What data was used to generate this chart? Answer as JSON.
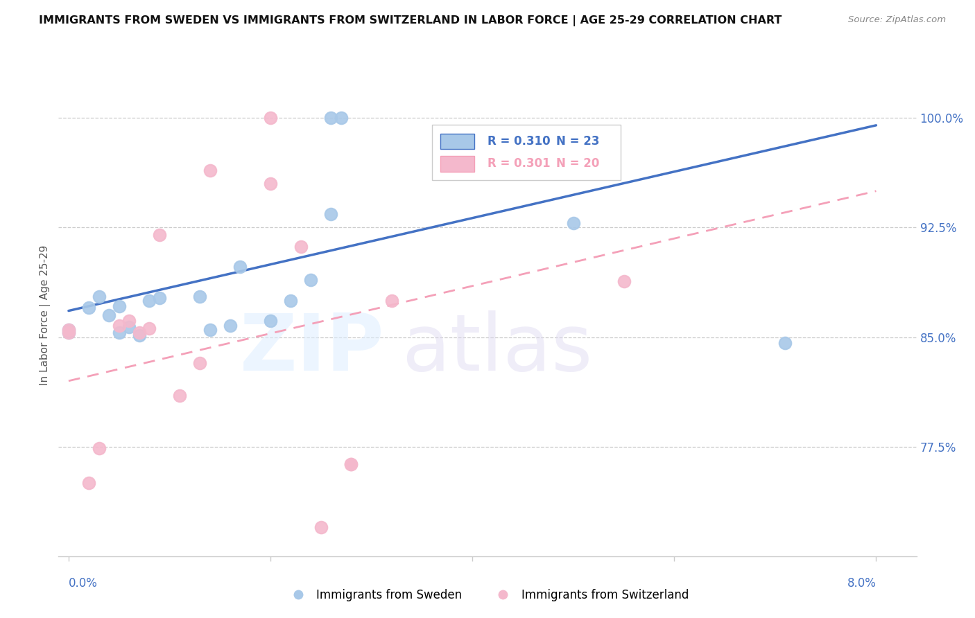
{
  "title": "IMMIGRANTS FROM SWEDEN VS IMMIGRANTS FROM SWITZERLAND IN LABOR FORCE | AGE 25-29 CORRELATION CHART",
  "source": "Source: ZipAtlas.com",
  "ylabel": "In Labor Force | Age 25-29",
  "sweden_R": 0.31,
  "sweden_N": 23,
  "swiss_R": 0.301,
  "swiss_N": 20,
  "sweden_color": "#a8c8e8",
  "swiss_color": "#f4b8cc",
  "sweden_line_color": "#4472c4",
  "swiss_line_color": "#f4a0b8",
  "ylim_min": 0.7,
  "ylim_max": 1.03,
  "xlim_min": -0.001,
  "xlim_max": 0.084,
  "yticks": [
    0.775,
    0.85,
    0.925,
    1.0
  ],
  "ytick_labels": [
    "77.5%",
    "85.0%",
    "92.5%",
    "100.0%"
  ],
  "xtick_positions": [
    0.0,
    0.02,
    0.04,
    0.06,
    0.08
  ],
  "sweden_x": [
    0.0,
    0.0,
    0.002,
    0.003,
    0.004,
    0.005,
    0.005,
    0.006,
    0.007,
    0.008,
    0.009,
    0.013,
    0.014,
    0.016,
    0.017,
    0.02,
    0.022,
    0.024,
    0.026,
    0.026,
    0.027,
    0.071,
    0.05
  ],
  "sweden_y": [
    0.855,
    0.853,
    0.87,
    0.878,
    0.865,
    0.853,
    0.871,
    0.857,
    0.851,
    0.875,
    0.877,
    0.878,
    0.855,
    0.858,
    0.898,
    0.861,
    0.875,
    0.889,
    0.934,
    1.0,
    1.0,
    0.846,
    0.928
  ],
  "swiss_x": [
    0.0,
    0.0,
    0.002,
    0.003,
    0.005,
    0.006,
    0.007,
    0.008,
    0.009,
    0.011,
    0.013,
    0.014,
    0.02,
    0.02,
    0.023,
    0.025,
    0.028,
    0.028,
    0.032,
    0.055
  ],
  "swiss_y": [
    0.853,
    0.855,
    0.75,
    0.774,
    0.858,
    0.861,
    0.853,
    0.856,
    0.92,
    0.81,
    0.832,
    0.964,
    0.955,
    1.0,
    0.912,
    0.72,
    0.763,
    0.763,
    0.875,
    0.888
  ],
  "sweden_line_x0": 0.0,
  "sweden_line_y0": 0.868,
  "sweden_line_x1": 0.08,
  "sweden_line_y1": 0.995,
  "swiss_line_x0": 0.0,
  "swiss_line_y0": 0.82,
  "swiss_line_x1": 0.08,
  "swiss_line_y1": 0.95
}
